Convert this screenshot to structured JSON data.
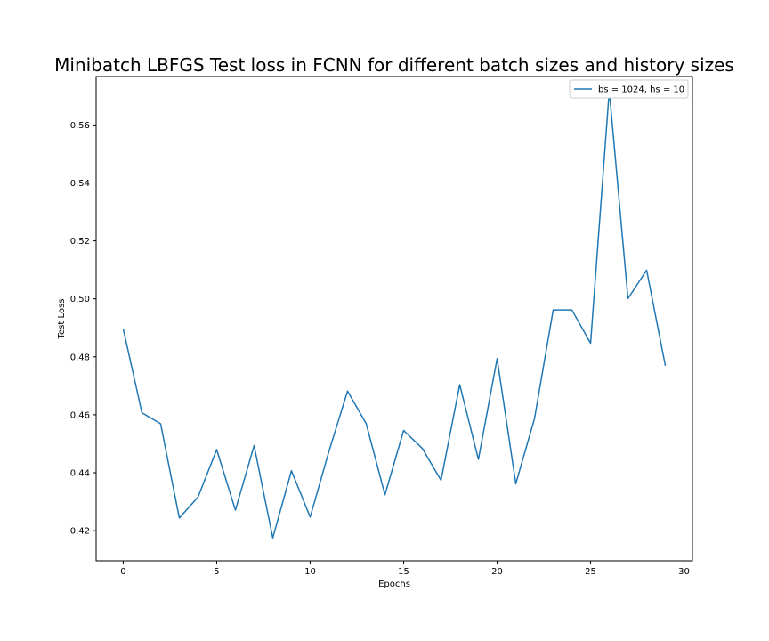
{
  "chart_data": {
    "type": "line",
    "title": "Minibatch LBFGS Test loss in FCNN for different batch sizes and history sizes",
    "xlabel": "Epochs",
    "ylabel": "Test Loss",
    "xlim": [
      -1.45,
      30.45
    ],
    "ylim": [
      0.4096,
      0.5767
    ],
    "xticks": [
      0,
      5,
      10,
      15,
      20,
      25,
      30
    ],
    "yticks": [
      0.42,
      0.44,
      0.46,
      0.48,
      0.5,
      0.52,
      0.54,
      0.56
    ],
    "ytick_labels": [
      "0.42",
      "0.44",
      "0.46",
      "0.48",
      "0.50",
      "0.52",
      "0.54",
      "0.56"
    ],
    "grid": false,
    "legend_position": "top-right",
    "series": [
      {
        "name": "bs = 1024, hs = 10",
        "color": "#1f77b4",
        "x": [
          0,
          1,
          2,
          3,
          4,
          5,
          6,
          7,
          8,
          9,
          10,
          11,
          12,
          13,
          14,
          15,
          16,
          17,
          18,
          19,
          20,
          21,
          22,
          23,
          24,
          25,
          26,
          27,
          28,
          29
        ],
        "values": [
          0.4897,
          0.4607,
          0.4569,
          0.4244,
          0.4316,
          0.448,
          0.4271,
          0.4494,
          0.4175,
          0.4407,
          0.4247,
          0.4473,
          0.4682,
          0.4569,
          0.4324,
          0.4546,
          0.4484,
          0.4374,
          0.4704,
          0.4446,
          0.4794,
          0.4362,
          0.4587,
          0.4962,
          0.4962,
          0.4847,
          0.5719,
          0.5001,
          0.5099,
          0.4769
        ]
      }
    ]
  }
}
